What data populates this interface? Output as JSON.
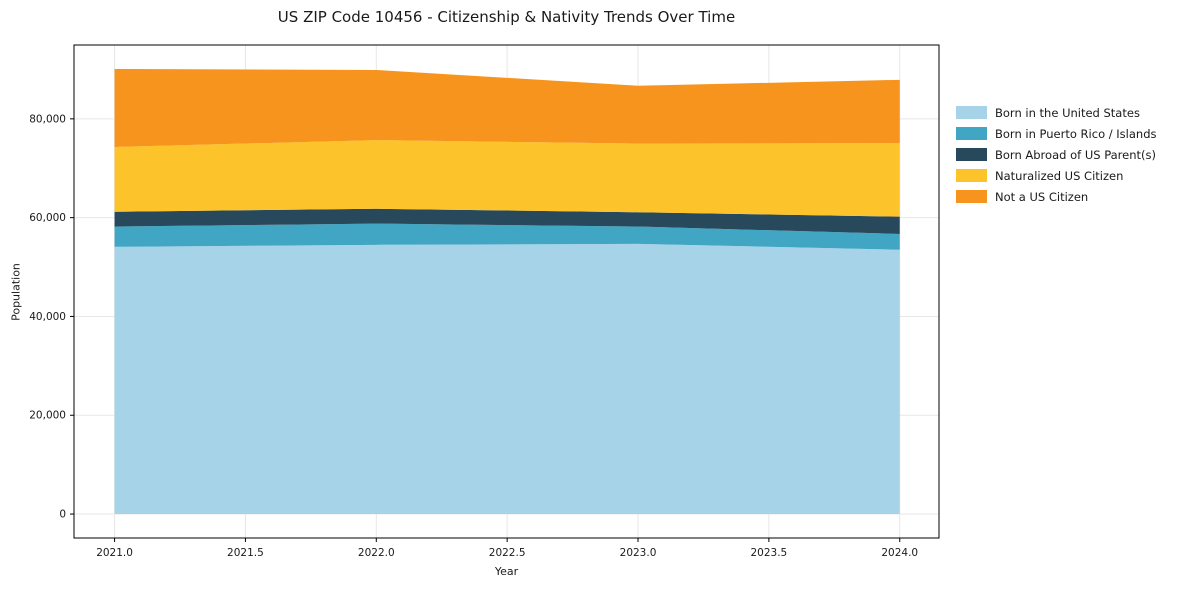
{
  "title": "US ZIP Code 10456 - Citizenship & Nativity Trends Over Time",
  "chart_data": {
    "type": "area",
    "stacked": true,
    "title": "US ZIP Code 10456 - Citizenship & Nativity Trends Over Time",
    "xlabel": "Year",
    "ylabel": "Population",
    "x": [
      2021,
      2022,
      2023,
      2024
    ],
    "series": [
      {
        "name": "Born in the United States",
        "color": "#a7d3e8",
        "values": [
          54100,
          54500,
          54700,
          53500
        ]
      },
      {
        "name": "Born in Puerto Rico / Islands",
        "color": "#40a6c3",
        "values": [
          4100,
          4300,
          3500,
          3200
        ]
      },
      {
        "name": "Born Abroad of US Parent(s)",
        "color": "#28495c",
        "values": [
          3000,
          3000,
          2900,
          3500
        ]
      },
      {
        "name": "Naturalized US Citizen",
        "color": "#fcc32b",
        "values": [
          13100,
          13900,
          13900,
          14900
        ]
      },
      {
        "name": "Not a US Citizen",
        "color": "#f6941e",
        "values": [
          15800,
          14200,
          11700,
          12800
        ]
      }
    ],
    "totals": [
      90100,
      89900,
      86700,
      87900
    ],
    "xticks": [
      2021.0,
      2021.5,
      2022.0,
      2022.5,
      2023.0,
      2023.5,
      2024.0
    ],
    "xtick_labels": [
      "2021.0",
      "2021.5",
      "2022.0",
      "2022.5",
      "2023.0",
      "2023.5",
      "2024.0"
    ],
    "yticks": [
      0,
      20000,
      40000,
      60000,
      80000
    ],
    "ytick_labels": [
      "0",
      "20,000",
      "40,000",
      "60,000",
      "80,000"
    ],
    "xlim": [
      2020.845,
      2024.15
    ],
    "ylim": [
      -4850,
      94950
    ],
    "grid": true,
    "grid_color": "#e7e7e7",
    "spine_color": "#000000",
    "legend_position": "right"
  }
}
